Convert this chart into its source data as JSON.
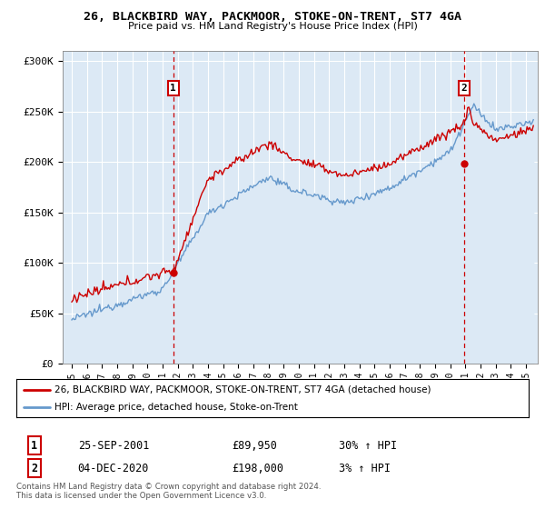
{
  "title": "26, BLACKBIRD WAY, PACKMOOR, STOKE-ON-TRENT, ST7 4GA",
  "subtitle": "Price paid vs. HM Land Registry's House Price Index (HPI)",
  "ylim": [
    0,
    310000
  ],
  "yticks": [
    0,
    50000,
    100000,
    150000,
    200000,
    250000,
    300000
  ],
  "ytick_labels": [
    "£0",
    "£50K",
    "£100K",
    "£150K",
    "£200K",
    "£250K",
    "£300K"
  ],
  "xtick_years": [
    1995,
    1996,
    1997,
    1998,
    1999,
    2000,
    2001,
    2002,
    2003,
    2004,
    2005,
    2006,
    2007,
    2008,
    2009,
    2010,
    2011,
    2012,
    2013,
    2014,
    2015,
    2016,
    2017,
    2018,
    2019,
    2020,
    2021,
    2022,
    2023,
    2024,
    2025
  ],
  "house_color": "#cc0000",
  "hpi_color": "#6699cc",
  "plot_bg_color": "#dce9f5",
  "transaction1": {
    "date": "25-SEP-2001",
    "price": "£89,950",
    "hpi": "30% ↑ HPI",
    "value": 89950,
    "t": 2001.71
  },
  "transaction2": {
    "date": "04-DEC-2020",
    "price": "£198,000",
    "hpi": "3% ↑ HPI",
    "value": 198000,
    "t": 2020.92
  },
  "legend_house": "26, BLACKBIRD WAY, PACKMOOR, STOKE-ON-TRENT, ST7 4GA (detached house)",
  "legend_hpi": "HPI: Average price, detached house, Stoke-on-Trent",
  "footer": "Contains HM Land Registry data © Crown copyright and database right 2024.\nThis data is licensed under the Open Government Licence v3.0.",
  "bg_color": "#ffffff",
  "grid_color": "#ffffff"
}
